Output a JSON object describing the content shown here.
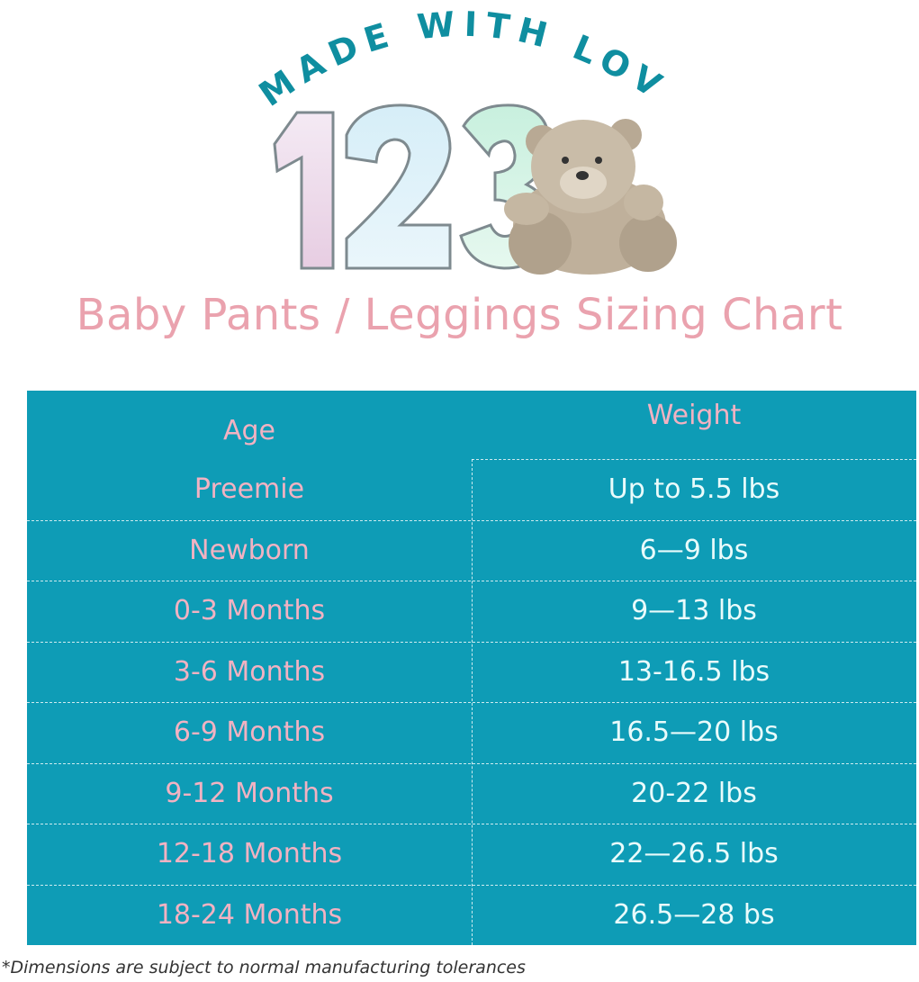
{
  "logo": {
    "arc_text": "MADE WITH LOVE",
    "numerals": "123",
    "brand_color": "#0f8ea0"
  },
  "title": "Baby Pants / Leggings Sizing Chart",
  "table": {
    "headers": {
      "age": "Age",
      "weight": "Weight"
    },
    "rows": [
      {
        "age": "Preemie",
        "weight": "Up to 5.5 lbs"
      },
      {
        "age": "Newborn",
        "weight": "6—9 lbs"
      },
      {
        "age": "0-3 Months",
        "weight": "9—13 lbs"
      },
      {
        "age": "3-6 Months",
        "weight": "13-16.5 lbs"
      },
      {
        "age": "6-9 Months",
        "weight": "16.5—20 lbs"
      },
      {
        "age": "9-12 Months",
        "weight": "20-22 lbs"
      },
      {
        "age": "12-18 Months",
        "weight": "22—26.5 lbs"
      },
      {
        "age": "18-24 Months",
        "weight": "26.5—28 bs"
      }
    ],
    "colors": {
      "background": "#0e9cb6",
      "age_text": "#f2b2c2",
      "weight_text": "#e9fbfb"
    }
  },
  "footnote": "*Dimensions are subject to normal manufacturing tolerances"
}
